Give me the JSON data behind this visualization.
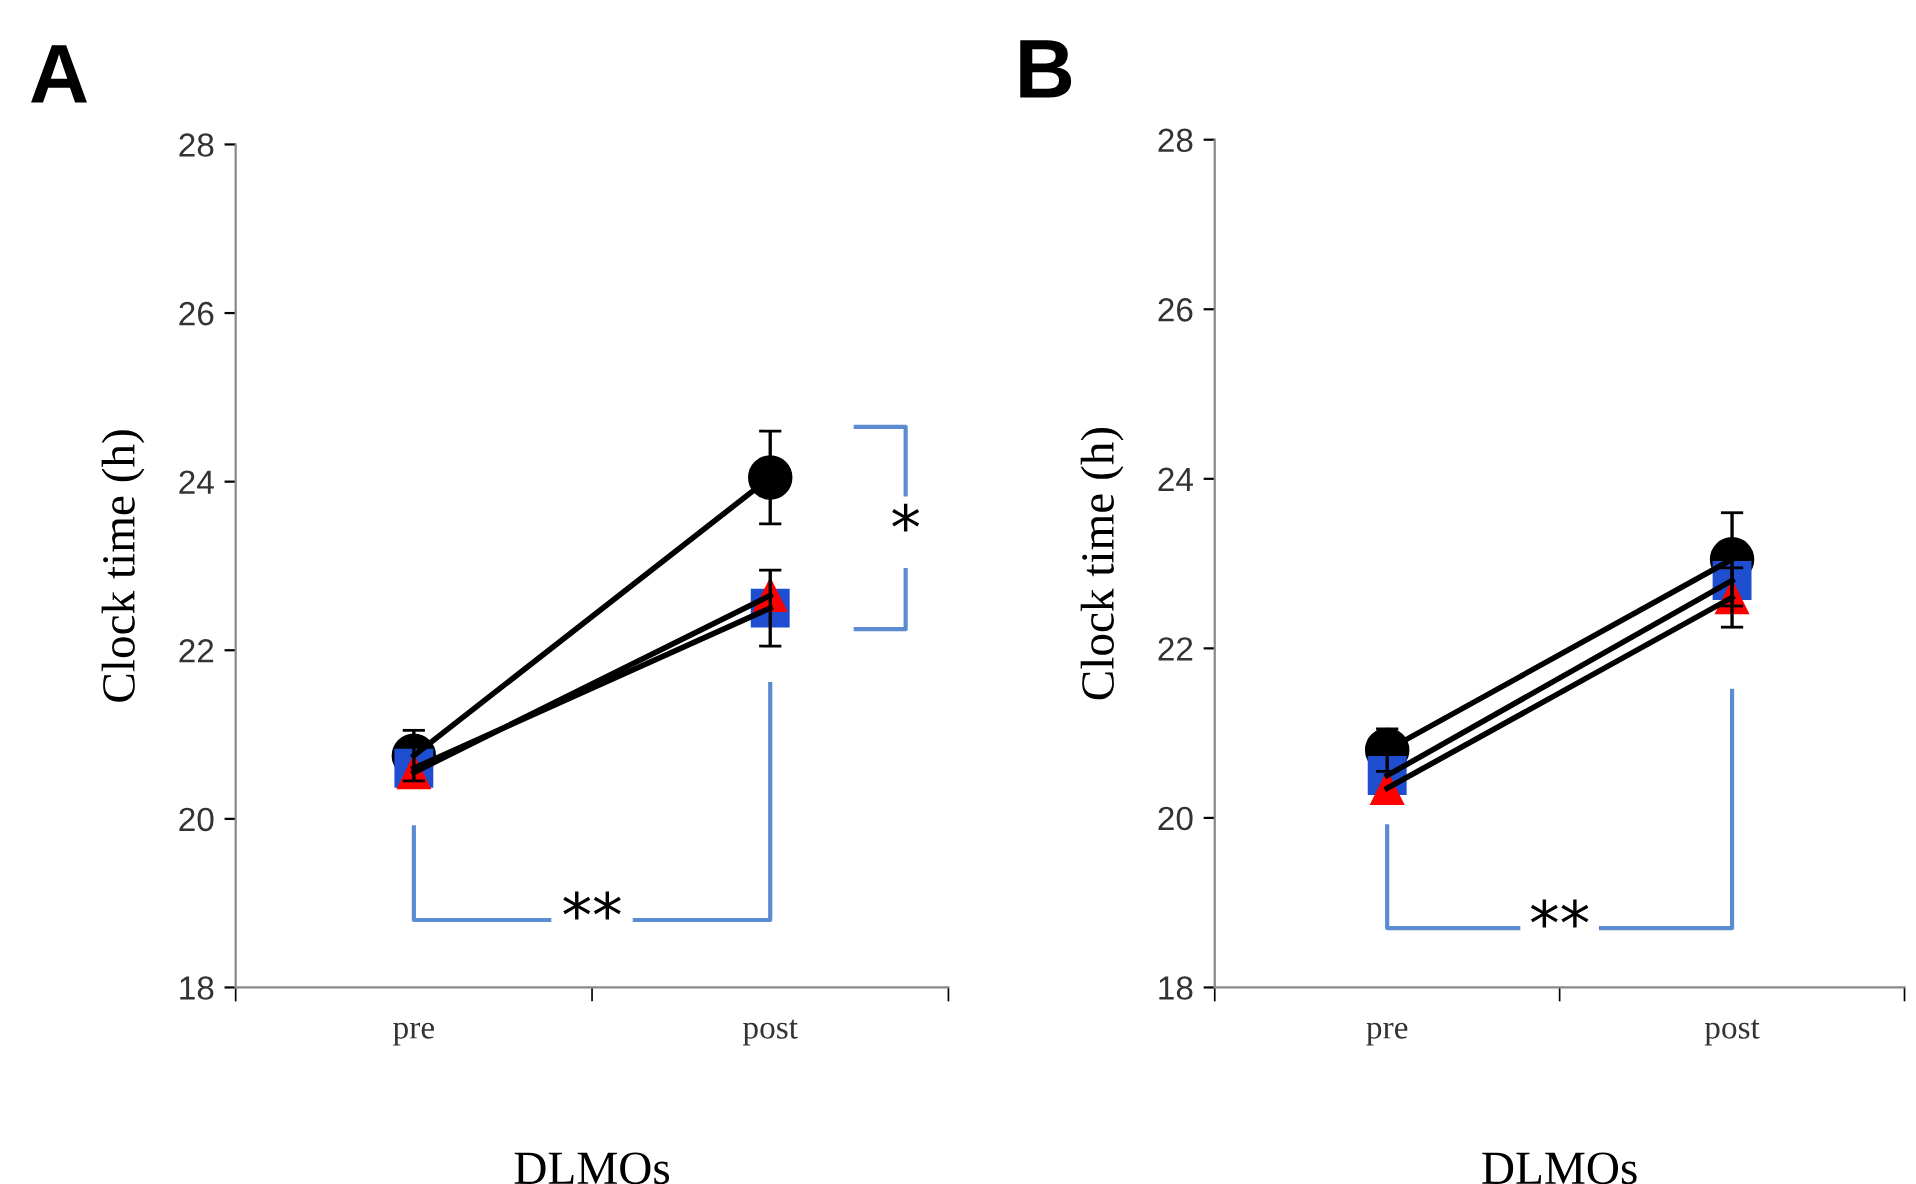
{
  "chart_data": [
    {
      "type": "line",
      "title": "A",
      "xlabel": "DLMOs",
      "ylabel": "Clock time (h)",
      "categories": [
        "pre",
        "post"
      ],
      "ylim": [
        18,
        28
      ],
      "yticks": [
        18,
        20,
        22,
        24,
        26,
        28
      ],
      "grid": false,
      "legend": false,
      "line_style": "solid",
      "annotations": [
        "**",
        "*"
      ],
      "series": [
        {
          "color": "#000000",
          "marker": "circle",
          "values": [
            20.75,
            24.05
          ],
          "errors": [
            0.3,
            0.55
          ]
        },
        {
          "color": "#1f4fd0",
          "marker": "square",
          "values": [
            20.6,
            22.5
          ],
          "errors": [
            null,
            0.45
          ]
        },
        {
          "color": "#ff0000",
          "marker": "triangle",
          "values": [
            20.55,
            22.65
          ],
          "errors": [
            null,
            null
          ]
        }
      ]
    },
    {
      "type": "line",
      "title": "B",
      "xlabel": "DLMOs",
      "ylabel": "Clock time (h)",
      "categories": [
        "pre",
        "post"
      ],
      "ylim": [
        18,
        28
      ],
      "yticks": [
        18,
        20,
        22,
        24,
        26,
        28
      ],
      "grid": false,
      "legend": false,
      "line_style": "solid",
      "annotations": [
        "**"
      ],
      "series": [
        {
          "color": "#000000",
          "marker": "circle",
          "values": [
            20.8,
            23.05
          ],
          "errors": [
            0.25,
            0.55
          ]
        },
        {
          "color": "#1f4fd0",
          "marker": "square",
          "values": [
            20.5,
            22.8
          ],
          "errors": [
            null,
            null
          ]
        },
        {
          "color": "#ff0000",
          "marker": "triangle",
          "values": [
            20.35,
            22.6
          ],
          "errors": [
            null,
            0.35
          ]
        }
      ]
    }
  ]
}
